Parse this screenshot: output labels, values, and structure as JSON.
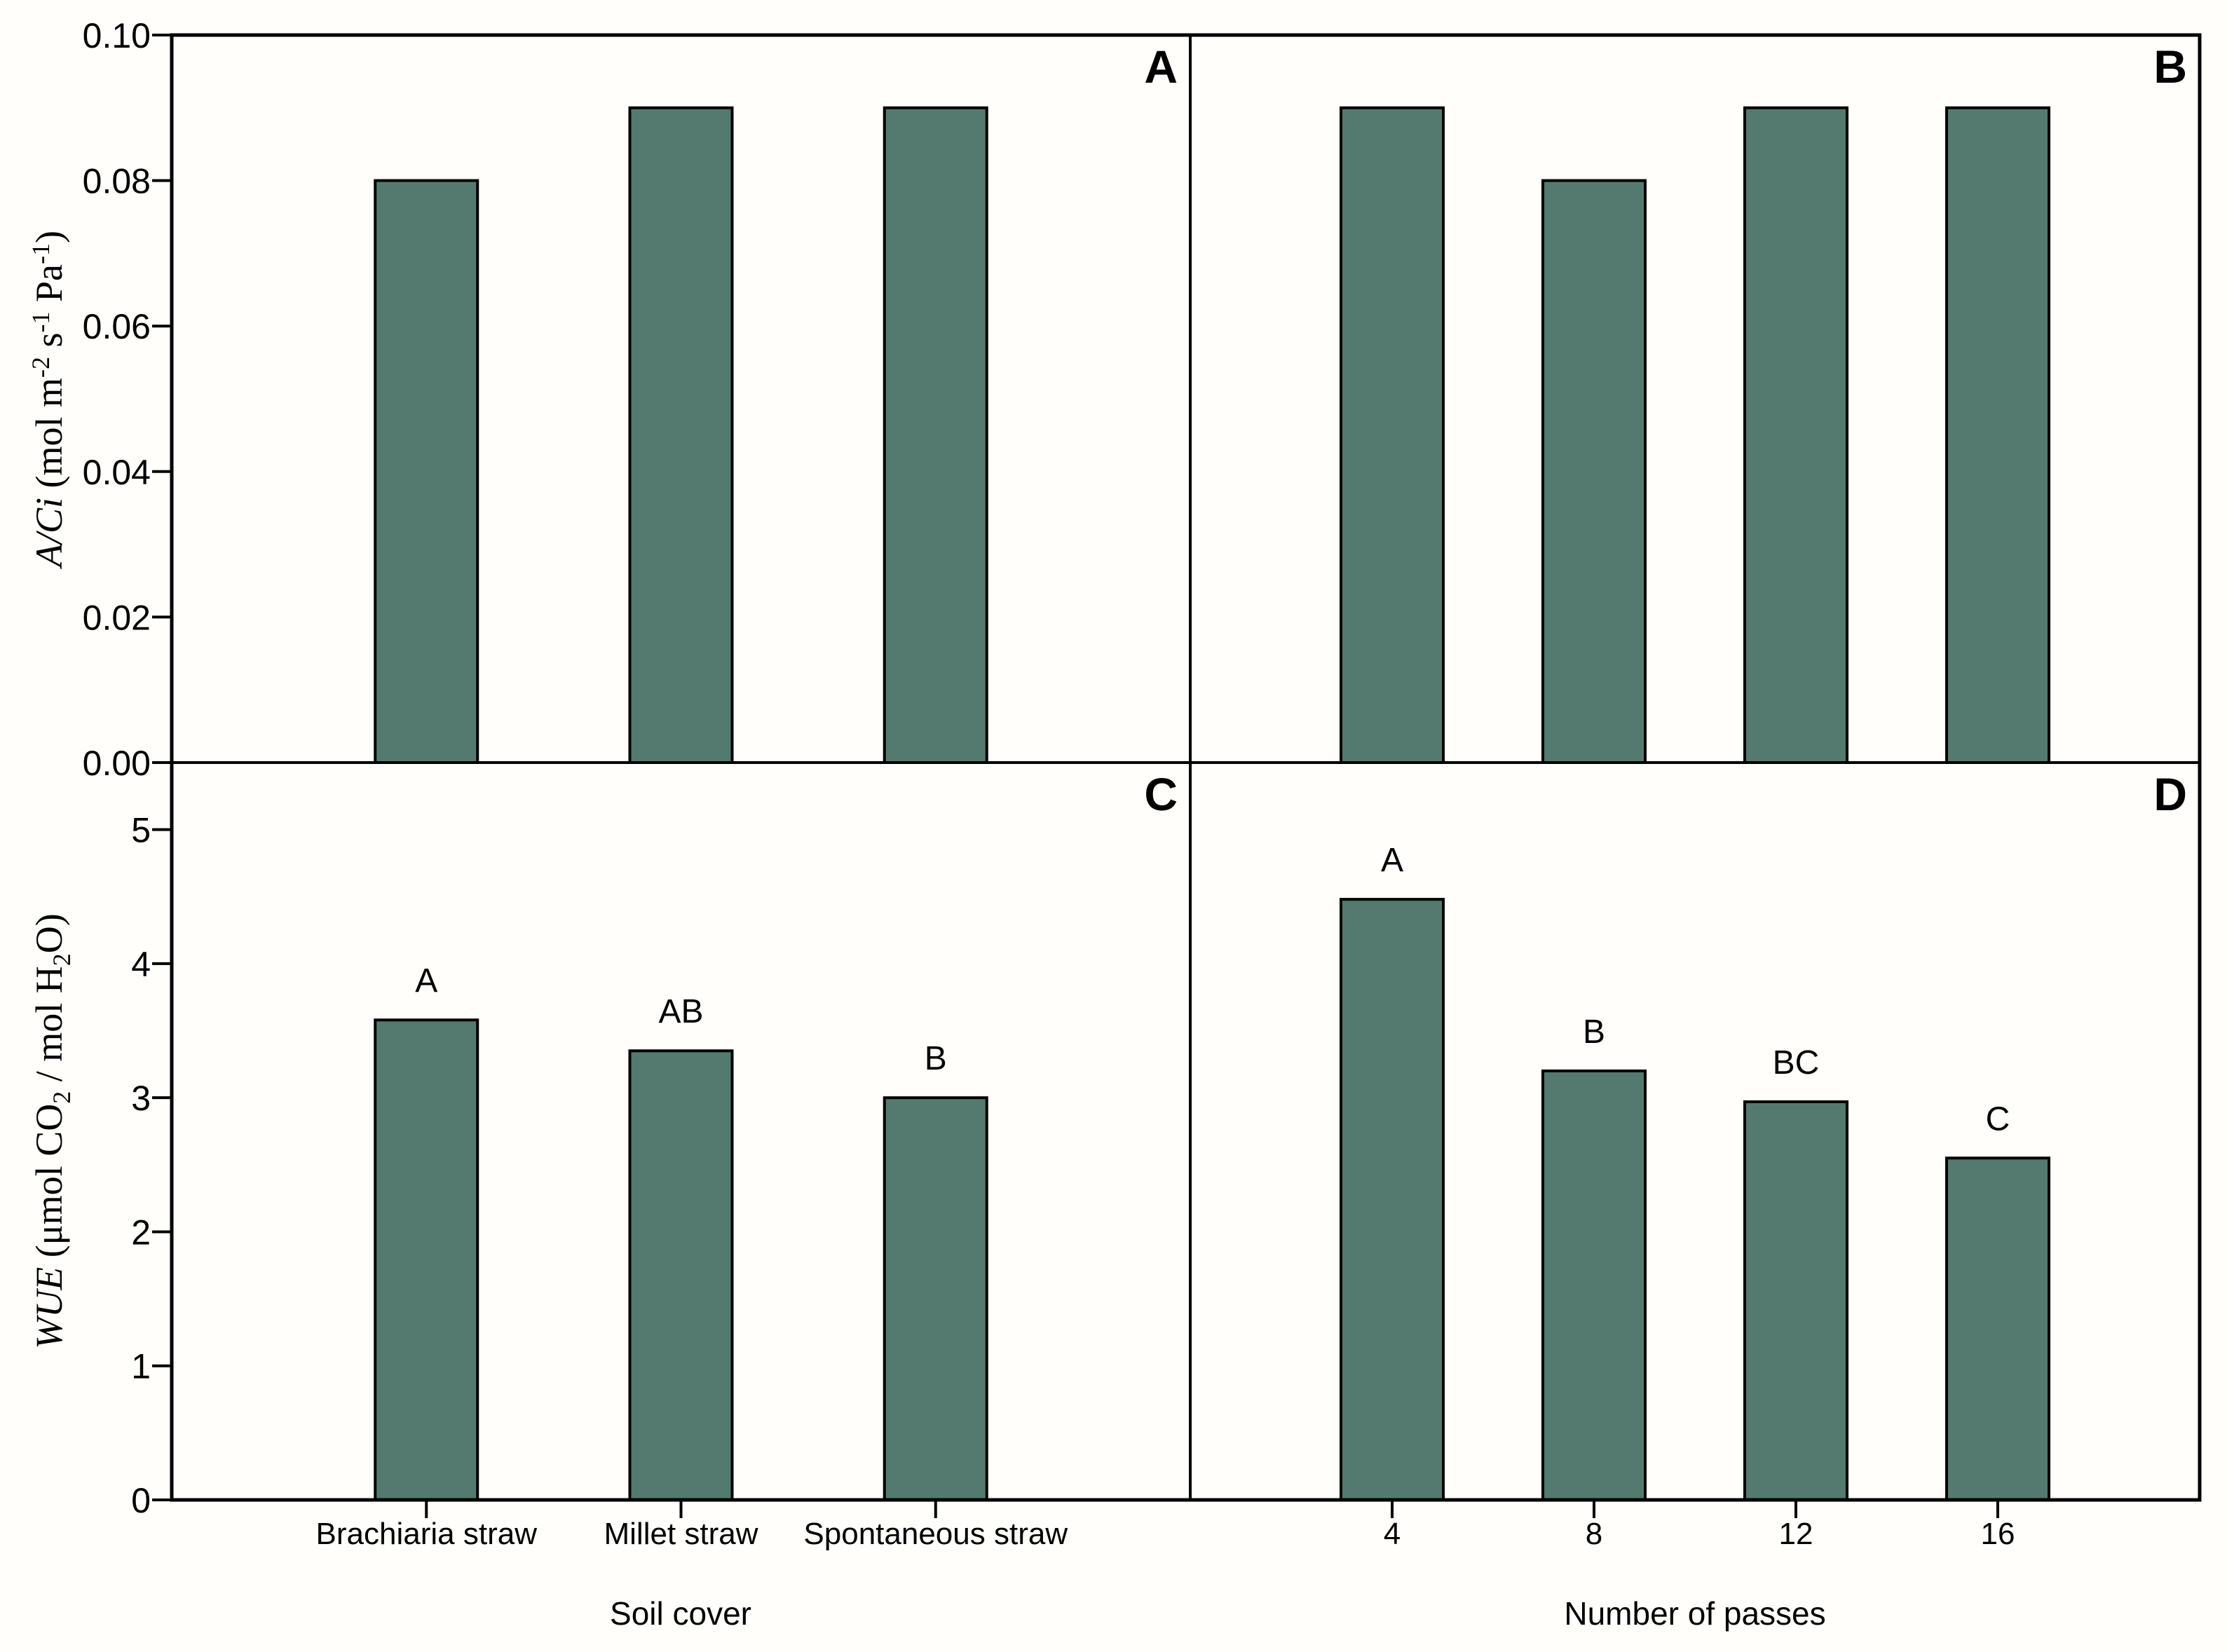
{
  "figure": {
    "background": "#fffefa",
    "text_color": "#000000"
  },
  "chart_data": {
    "type": "bar",
    "grid": false,
    "legend": "none",
    "bar_color": "#547a6f",
    "bar_edge_color": "#000000",
    "axis_color": "#000000",
    "rows": [
      {
        "ylabel": "A/Ci (mol m⁻² s⁻¹ Pa⁻¹)",
        "ylabel_runs": [
          {
            "t": "A/Ci",
            "italic": true
          },
          {
            "t": " (mol m"
          },
          {
            "t": "-2",
            "sup": true
          },
          {
            "t": " s"
          },
          {
            "t": "-1",
            "sup": true
          },
          {
            "t": " Pa"
          },
          {
            "t": "-1",
            "sup": true
          },
          {
            "t": ")"
          }
        ],
        "ylim": [
          0,
          0.1
        ],
        "yticks": [
          {
            "value": 0.1,
            "label": "0.10"
          },
          {
            "value": 0.08,
            "label": "0.08"
          },
          {
            "value": 0.06,
            "label": "0.06"
          },
          {
            "value": 0.04,
            "label": "0.04"
          },
          {
            "value": 0.02,
            "label": "0.02"
          },
          {
            "value": 0.0,
            "label": "0.00"
          }
        ]
      },
      {
        "ylabel": "WUE (μmol CO₂ / mol H₂O)",
        "ylabel_runs": [
          {
            "t": "WUE",
            "italic": true
          },
          {
            "t": " (μmol CO"
          },
          {
            "t": "2",
            "sub": true
          },
          {
            "t": " / mol H"
          },
          {
            "t": "2",
            "sub": true
          },
          {
            "t": "O)"
          }
        ],
        "ylim": [
          0,
          5.5
        ],
        "yticks": [
          {
            "value": 5,
            "label": "5"
          },
          {
            "value": 4,
            "label": "4"
          },
          {
            "value": 3,
            "label": "3"
          },
          {
            "value": 2,
            "label": "2"
          },
          {
            "value": 1,
            "label": "1"
          },
          {
            "value": 0,
            "label": "0"
          }
        ]
      }
    ],
    "cols": [
      {
        "xlabel": "Soil cover",
        "categories": [
          "Brachiaria straw",
          "Millet straw",
          "Spontaneous straw"
        ]
      },
      {
        "xlabel": "Number of passes",
        "categories": [
          "4",
          "8",
          "12",
          "16"
        ]
      }
    ],
    "panels": [
      {
        "letter": "A",
        "row": 0,
        "col": 0,
        "values": [
          0.08,
          0.09,
          0.09
        ],
        "sig_letters": [
          "",
          "",
          ""
        ]
      },
      {
        "letter": "B",
        "row": 0,
        "col": 1,
        "values": [
          0.09,
          0.08,
          0.09,
          0.09
        ],
        "sig_letters": [
          "",
          "",
          "",
          ""
        ]
      },
      {
        "letter": "C",
        "row": 1,
        "col": 0,
        "values": [
          3.58,
          3.35,
          3.0
        ],
        "sig_letters": [
          "A",
          "AB",
          "B"
        ]
      },
      {
        "letter": "D",
        "row": 1,
        "col": 1,
        "values": [
          4.48,
          3.2,
          2.97,
          2.55
        ],
        "sig_letters": [
          "A",
          "B",
          "BC",
          "C"
        ]
      }
    ]
  }
}
